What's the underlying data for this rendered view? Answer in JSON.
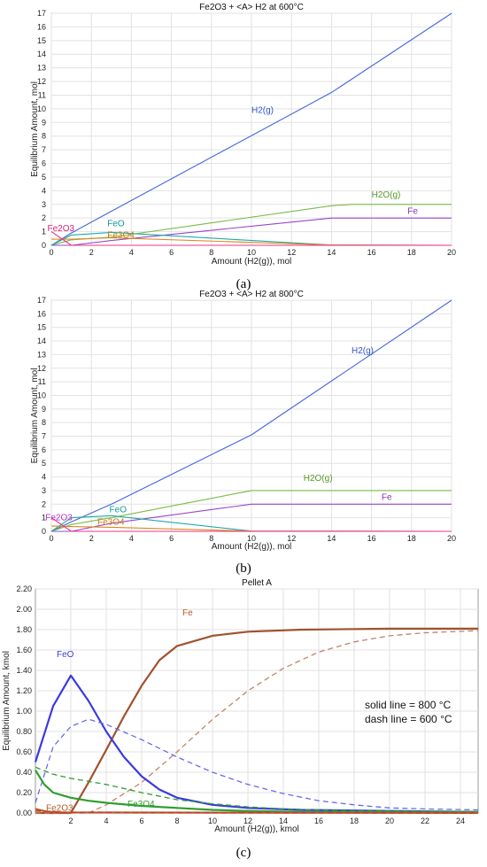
{
  "chart_data": [
    {
      "id": "a",
      "type": "line",
      "panel_label": "(a)",
      "title": "Fe2O3 + <A> H2 at 600°C",
      "xlabel": "Amount (H2(g)), mol",
      "ylabel": "Equilibrium Amount, mol",
      "xlim": [
        0,
        20
      ],
      "ylim": [
        0,
        17
      ],
      "xticks": [
        0,
        2,
        4,
        6,
        8,
        10,
        12,
        14,
        16,
        18,
        20
      ],
      "yticks": [
        0,
        1,
        2,
        3,
        4,
        5,
        6,
        7,
        8,
        9,
        10,
        11,
        12,
        13,
        14,
        15,
        16,
        17
      ],
      "grid": true,
      "series": [
        {
          "name": "H2(g)",
          "color": "#4466dd",
          "style": "solid",
          "x": [
            0,
            1,
            3,
            14,
            20
          ],
          "y": [
            0,
            0.9,
            2.5,
            11.2,
            17
          ]
        },
        {
          "name": "H2O(g)",
          "color": "#77bb44",
          "style": "solid",
          "x": [
            0,
            1,
            3,
            14,
            15,
            20
          ],
          "y": [
            0,
            0.4,
            0.6,
            2.9,
            3.0,
            3.0
          ]
        },
        {
          "name": "Fe",
          "color": "#9944cc",
          "style": "solid",
          "x": [
            0,
            1,
            3,
            14,
            20
          ],
          "y": [
            0,
            0,
            0.35,
            2.0,
            2.0
          ]
        },
        {
          "name": "FeO",
          "color": "#22aaaa",
          "style": "solid",
          "x": [
            0,
            1,
            3,
            14,
            20
          ],
          "y": [
            0,
            0.75,
            0.95,
            0.02,
            0
          ]
        },
        {
          "name": "Fe3O4",
          "color": "#dd8822",
          "style": "solid",
          "x": [
            0,
            1,
            3,
            14,
            20
          ],
          "y": [
            0.45,
            0.45,
            0.55,
            0.02,
            0
          ]
        },
        {
          "name": "Fe2O3",
          "color": "#ee3388",
          "style": "solid",
          "x": [
            0,
            1,
            20
          ],
          "y": [
            1.0,
            0,
            0
          ]
        }
      ],
      "labels": [
        {
          "text": "H2(g)",
          "x": 10.0,
          "y": 9.7,
          "color": "#3355cc"
        },
        {
          "text": "H2O(g)",
          "x": 16.0,
          "y": 3.5,
          "color": "#55992a"
        },
        {
          "text": "Fe",
          "x": 17.8,
          "y": 2.3,
          "color": "#8833bb"
        },
        {
          "text": "FeO",
          "x": 2.8,
          "y": 1.4,
          "color": "#119999"
        },
        {
          "text": "Fe3O4",
          "x": 2.8,
          "y": 0.55,
          "color": "#cc7711"
        },
        {
          "text": "Fe2O3",
          "x": -0.2,
          "y": 1.05,
          "color": "#dd2277"
        }
      ]
    },
    {
      "id": "b",
      "type": "line",
      "panel_label": "(b)",
      "title": "Fe2O3 + <A> H2 at 800°C",
      "xlabel": "Amount (H2(g)), mol",
      "ylabel": "Equilibrium Amount, mol",
      "xlim": [
        0,
        20
      ],
      "ylim": [
        0,
        17
      ],
      "xticks": [
        0,
        2,
        4,
        6,
        8,
        10,
        12,
        14,
        16,
        18,
        20
      ],
      "yticks": [
        0,
        1,
        2,
        3,
        4,
        5,
        6,
        7,
        8,
        9,
        10,
        11,
        12,
        13,
        14,
        15,
        16,
        17
      ],
      "grid": true,
      "series": [
        {
          "name": "H2(g)",
          "color": "#4466dd",
          "style": "solid",
          "x": [
            0,
            1,
            3,
            10,
            20
          ],
          "y": [
            0,
            0.7,
            2.0,
            7.1,
            17
          ]
        },
        {
          "name": "H2O(g)",
          "color": "#77bb44",
          "style": "solid",
          "x": [
            0,
            1,
            3,
            10,
            20
          ],
          "y": [
            0,
            0.5,
            1.0,
            3.0,
            3.0
          ]
        },
        {
          "name": "Fe",
          "color": "#9944cc",
          "style": "solid",
          "x": [
            0,
            1,
            3,
            10,
            20
          ],
          "y": [
            0,
            0,
            0.6,
            2.0,
            2.0
          ]
        },
        {
          "name": "FeO",
          "color": "#22aaaa",
          "style": "solid",
          "x": [
            0,
            1,
            3,
            10,
            20
          ],
          "y": [
            0,
            1.0,
            1.15,
            0.02,
            0
          ]
        },
        {
          "name": "Fe3O4",
          "color": "#dd8822",
          "style": "solid",
          "x": [
            0,
            1,
            3,
            10,
            20
          ],
          "y": [
            0.4,
            0.35,
            0.3,
            0.02,
            0
          ]
        },
        {
          "name": "Fe2O3",
          "color": "#ee3388",
          "style": "solid",
          "x": [
            0,
            1,
            20
          ],
          "y": [
            1.0,
            0,
            0
          ]
        }
      ],
      "labels": [
        {
          "text": "H2(g)",
          "x": 15.0,
          "y": 13.1,
          "color": "#3355cc"
        },
        {
          "text": "H2O(g)",
          "x": 12.6,
          "y": 3.7,
          "color": "#55992a"
        },
        {
          "text": "Fe",
          "x": 16.5,
          "y": 2.3,
          "color": "#8833bb"
        },
        {
          "text": "FeO",
          "x": 2.9,
          "y": 1.4,
          "color": "#119999"
        },
        {
          "text": "Fe3O4",
          "x": 2.3,
          "y": 0.5,
          "color": "#cc7711"
        },
        {
          "text": "Fe2O3",
          "x": -0.3,
          "y": 0.8,
          "color": "#bb33cc"
        }
      ]
    },
    {
      "id": "c",
      "type": "line",
      "panel_label": "(c)",
      "title": "Pellet A",
      "xlabel": "Amount (H2(g)), kmol",
      "ylabel": "Equilibrium Amount, kmol",
      "xlim": [
        0,
        25
      ],
      "ylim": [
        0,
        2.2
      ],
      "xticks": [
        2,
        4,
        6,
        8,
        10,
        12,
        14,
        16,
        18,
        20,
        22,
        24
      ],
      "yticks": [
        0,
        0.2,
        0.4,
        0.6,
        0.8,
        1.0,
        1.2,
        1.4,
        1.6,
        1.8,
        2.0,
        2.2
      ],
      "ytick_labels": [
        "0.00",
        "0.20",
        "0.40",
        "0.60",
        "0.80",
        "1.00",
        "1.20",
        "1.40",
        "1.60",
        "1.80",
        "2.00",
        "2.20"
      ],
      "grid": true,
      "series": [
        {
          "name": "Fe",
          "color": "#a0522d",
          "style": "solid",
          "x": [
            0,
            1.5,
            2,
            3,
            4,
            5,
            6,
            7,
            8,
            10,
            12,
            15,
            20,
            25
          ],
          "y": [
            0,
            0,
            0,
            0.3,
            0.62,
            0.95,
            1.25,
            1.5,
            1.64,
            1.74,
            1.78,
            1.8,
            1.81,
            1.81
          ]
        },
        {
          "name": "Fe",
          "color": "#c4826a",
          "style": "dashed",
          "x": [
            0,
            3,
            4,
            6,
            8,
            10,
            12,
            14,
            16,
            18,
            20,
            22,
            25
          ],
          "y": [
            0,
            0,
            0.08,
            0.3,
            0.6,
            0.92,
            1.2,
            1.42,
            1.58,
            1.68,
            1.74,
            1.77,
            1.79
          ]
        },
        {
          "name": "FeO",
          "color": "#3a3ae0",
          "style": "solid",
          "x": [
            0,
            1,
            2,
            3,
            4,
            5,
            6,
            7,
            8,
            10,
            12,
            15,
            20,
            25
          ],
          "y": [
            0.5,
            1.05,
            1.35,
            1.1,
            0.8,
            0.55,
            0.36,
            0.23,
            0.15,
            0.08,
            0.05,
            0.03,
            0.02,
            0.01
          ]
        },
        {
          "name": "FeO",
          "color": "#6a6ae6",
          "style": "dashed",
          "x": [
            0,
            1,
            2,
            3,
            4,
            6,
            8,
            10,
            12,
            14,
            16,
            18,
            20,
            22,
            25
          ],
          "y": [
            0.1,
            0.65,
            0.85,
            0.92,
            0.87,
            0.72,
            0.55,
            0.4,
            0.28,
            0.19,
            0.12,
            0.08,
            0.05,
            0.04,
            0.03
          ]
        },
        {
          "name": "Fe3O4",
          "color": "#2e9e2e",
          "style": "solid",
          "x": [
            0,
            0.5,
            1,
            2,
            3,
            4,
            6,
            8,
            10,
            12,
            15,
            20,
            25
          ],
          "y": [
            0.42,
            0.28,
            0.2,
            0.15,
            0.12,
            0.1,
            0.07,
            0.05,
            0.03,
            0.02,
            0.01,
            0.01,
            0.01
          ]
        },
        {
          "name": "Fe3O4",
          "color": "#2e9e2e",
          "style": "dashed",
          "x": [
            0,
            1,
            2,
            4,
            6,
            8,
            10,
            12,
            14,
            16,
            18,
            20,
            25
          ],
          "y": [
            0.45,
            0.38,
            0.34,
            0.28,
            0.2,
            0.13,
            0.09,
            0.06,
            0.04,
            0.03,
            0.02,
            0.02,
            0.01
          ]
        },
        {
          "name": "Fe2O3",
          "color": "#b35c2a",
          "style": "solid",
          "x": [
            0,
            0.6,
            1.5,
            25
          ],
          "y": [
            0.04,
            0.015,
            0.005,
            0
          ]
        },
        {
          "name": "Fe2O3",
          "color": "#cc3333",
          "style": "dashed",
          "x": [
            0,
            1,
            2,
            25
          ],
          "y": [
            0.02,
            0.01,
            0.005,
            0
          ]
        }
      ],
      "labels": [
        {
          "text": "Fe",
          "x": 8.3,
          "y": 1.94,
          "color": "#b35c2a"
        },
        {
          "text": "FeO",
          "x": 1.2,
          "y": 1.53,
          "color": "#3a3ae0"
        },
        {
          "text": "Fe3O4",
          "x": 5.2,
          "y": 0.06,
          "color": "#2e9e2e"
        },
        {
          "text": "Fe2O3",
          "x": 0.6,
          "y": 0.02,
          "color": "#b35c2a"
        }
      ],
      "notes": [
        "solid line = 800 ",
        "dash line = 600 "
      ],
      "note_unit": "°C"
    }
  ]
}
